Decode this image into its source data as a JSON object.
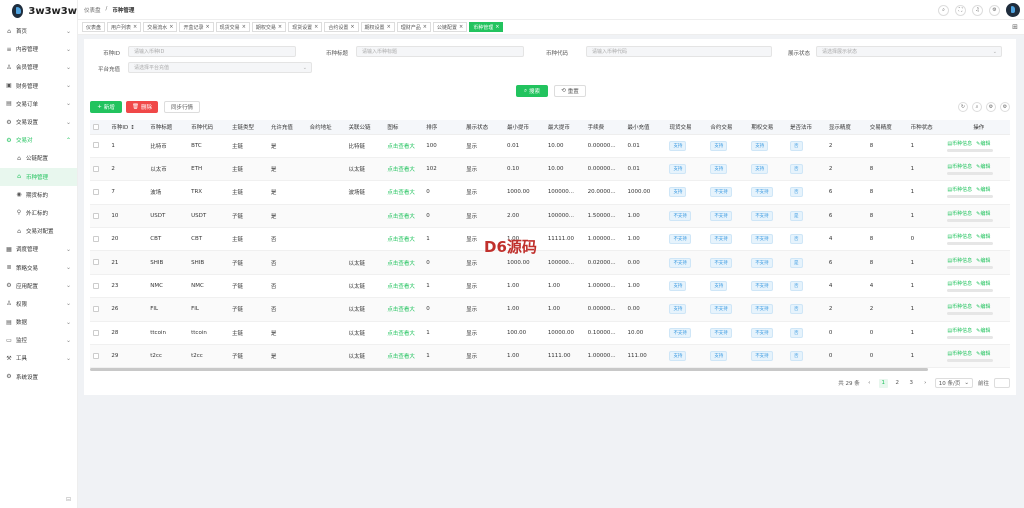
{
  "app": {
    "title": "3w3w3w"
  },
  "sidebar": {
    "items": [
      {
        "label": "首页",
        "icon": "home-icon",
        "glyph": "⌂",
        "arrow": "⌄"
      },
      {
        "label": "内容管理",
        "icon": "list-icon",
        "glyph": "≡",
        "arrow": "⌄"
      },
      {
        "label": "会员管理",
        "icon": "user-icon",
        "glyph": "♙",
        "arrow": "⌄"
      },
      {
        "label": "财务管理",
        "icon": "wallet-icon",
        "glyph": "▣",
        "arrow": "⌄"
      },
      {
        "label": "交易订单",
        "icon": "order-icon",
        "glyph": "▤",
        "arrow": "⌄"
      },
      {
        "label": "交易设置",
        "icon": "wrench-icon",
        "glyph": "⚙",
        "arrow": "⌄"
      },
      {
        "label": "交易对",
        "icon": "gear-icon",
        "glyph": "⚙",
        "arrow": "⌃"
      },
      {
        "label": "公链配置",
        "icon": "home-icon",
        "glyph": "⌂",
        "arrow": ""
      },
      {
        "label": "币种管理",
        "icon": "home-icon",
        "glyph": "⌂",
        "arrow": ""
      },
      {
        "label": "期货标的",
        "icon": "target-icon",
        "glyph": "◉",
        "arrow": ""
      },
      {
        "label": "外汇标的",
        "icon": "pin-icon",
        "glyph": "⚲",
        "arrow": ""
      },
      {
        "label": "交易对配置",
        "icon": "home-icon",
        "glyph": "⌂",
        "arrow": ""
      },
      {
        "label": "调度管理",
        "icon": "calendar-icon",
        "glyph": "▦",
        "arrow": "⌄"
      },
      {
        "label": "策略交易",
        "icon": "chart-icon",
        "glyph": "≣",
        "arrow": "⌄"
      },
      {
        "label": "应用配置",
        "icon": "settings-icon",
        "glyph": "⚙",
        "arrow": "⌄"
      },
      {
        "label": "权限",
        "icon": "lock-icon",
        "glyph": "♙",
        "arrow": "⌄"
      },
      {
        "label": "数据",
        "icon": "database-icon",
        "glyph": "▤",
        "arrow": "⌄"
      },
      {
        "label": "监控",
        "icon": "monitor-icon",
        "glyph": "▭",
        "arrow": "⌄"
      },
      {
        "label": "工具",
        "icon": "tool-icon",
        "glyph": "⚒",
        "arrow": "⌄"
      },
      {
        "label": "系统设置",
        "icon": "gear-icon",
        "glyph": "⚙",
        "arrow": ""
      }
    ],
    "collapse_glyph": "⊟"
  },
  "header": {
    "breadcrumb": [
      "仪表盘",
      "币种管理"
    ],
    "separator": "/",
    "tools": [
      "⌕",
      "⛶",
      "♫",
      "⚙"
    ]
  },
  "tabs": {
    "items": [
      "仪表盘",
      "用户列表",
      "交易流水",
      "开盒记录",
      "现货交易",
      "期权交易",
      "现货设置",
      "合约设置",
      "期权设置",
      "理财产品",
      "公链配置",
      "币种管理"
    ],
    "close": "×",
    "more": "⊞"
  },
  "filters": {
    "coin_id": {
      "label": "币种ID",
      "placeholder": "请输入币种ID"
    },
    "coin_title": {
      "label": "币种标题",
      "placeholder": "请输入币种标题"
    },
    "coin_code": {
      "label": "币种代码",
      "placeholder": "请输入币种代码"
    },
    "display_status": {
      "label": "展示状态",
      "placeholder": "请选择展示状态"
    },
    "platform_deposit": {
      "label": "平台充值",
      "placeholder": "请选择平台充值"
    }
  },
  "buttons": {
    "search": "搜索",
    "reset": "重置",
    "add": "新增",
    "delete": "删除",
    "sync": "同步行情",
    "search_icon": "⌕",
    "reset_icon": "⟲",
    "add_icon": "+",
    "delete_icon": "🗑"
  },
  "table_tools": [
    "↻",
    "⌕",
    "⚙",
    "⚙"
  ],
  "table": {
    "headers": [
      "币种ID",
      "币种标题",
      "币种代码",
      "主链类型",
      "允许充值",
      "合约地址",
      "关联公链",
      "图标",
      "排序",
      "展示状态",
      "最小提币",
      "最大提币",
      "手续费",
      "最小充值",
      "现货交易",
      "合约交易",
      "期权交易",
      "是否法币",
      "显示精度",
      "交易精度",
      "币种状态",
      "操作"
    ],
    "sort_glyph": "↕",
    "rows": [
      [
        "1",
        "比特币",
        "BTC",
        "主链",
        "是",
        "",
        "比特链",
        "点击查看大",
        "100",
        "显示",
        "0.01",
        "10.00",
        "0.00000...",
        "0.01",
        "支持",
        "支持",
        "支持",
        "否",
        "2",
        "8",
        "1"
      ],
      [
        "2",
        "以太币",
        "ETH",
        "主链",
        "是",
        "",
        "以太链",
        "点击查看大",
        "102",
        "显示",
        "0.10",
        "10.00",
        "0.00000...",
        "0.01",
        "支持",
        "支持",
        "支持",
        "否",
        "2",
        "8",
        "1"
      ],
      [
        "7",
        "波场",
        "TRX",
        "主链",
        "是",
        "",
        "波场链",
        "点击查看大",
        "0",
        "显示",
        "1000.00",
        "100000...",
        "20.0000...",
        "1000.00",
        "支持",
        "不支持",
        "不支持",
        "否",
        "6",
        "8",
        "1"
      ],
      [
        "10",
        "USDT",
        "USDT",
        "子链",
        "是",
        "",
        "",
        "点击查看大",
        "0",
        "显示",
        "2.00",
        "100000...",
        "1.50000...",
        "1.00",
        "不支持",
        "不支持",
        "不支持",
        "是",
        "6",
        "8",
        "1"
      ],
      [
        "20",
        "CBT",
        "CBT",
        "主链",
        "否",
        "",
        "",
        "点击查看大",
        "1",
        "显示",
        "1.00",
        "11111.00",
        "1.00000...",
        "1.00",
        "不支持",
        "不支持",
        "不支持",
        "否",
        "4",
        "8",
        "0"
      ],
      [
        "21",
        "SHIB",
        "SHIB",
        "子链",
        "否",
        "",
        "以太链",
        "点击查看大",
        "0",
        "显示",
        "1000.00",
        "100000...",
        "0.02000...",
        "0.00",
        "不支持",
        "不支持",
        "不支持",
        "是",
        "6",
        "8",
        "1"
      ],
      [
        "23",
        "NMC",
        "NMC",
        "子链",
        "否",
        "",
        "以太链",
        "点击查看大",
        "1",
        "显示",
        "1.00",
        "1.00",
        "1.00000...",
        "1.00",
        "支持",
        "支持",
        "不支持",
        "否",
        "4",
        "4",
        "1"
      ],
      [
        "26",
        "FIL",
        "FIL",
        "子链",
        "否",
        "",
        "以太链",
        "点击查看大",
        "0",
        "显示",
        "1.00",
        "1.00",
        "0.00000...",
        "0.00",
        "支持",
        "不支持",
        "不支持",
        "否",
        "2",
        "2",
        "1"
      ],
      [
        "28",
        "ttcoin",
        "ttcoin",
        "主链",
        "是",
        "",
        "以太链",
        "点击查看大",
        "1",
        "显示",
        "100.00",
        "10000.00",
        "0.10000...",
        "10.00",
        "不支持",
        "不支持",
        "不支持",
        "否",
        "0",
        "0",
        "1"
      ],
      [
        "29",
        "t2cc",
        "t2cc",
        "子链",
        "是",
        "",
        "以太链",
        "点击查看大",
        "1",
        "显示",
        "1.00",
        "1111.00",
        "1.00000...",
        "111.00",
        "支持",
        "支持",
        "不支持",
        "否",
        "0",
        "0",
        "1"
      ]
    ],
    "ops": {
      "info": "币种信息",
      "edit": "编辑"
    }
  },
  "pagination": {
    "total": "共 29 条",
    "prev": "‹",
    "pages": [
      "1",
      "2",
      "3"
    ],
    "current": "1",
    "next": "›",
    "page_size": "10 条/页",
    "jump_label": "前往"
  },
  "watermark": "D6源码",
  "colors": {
    "accent": "#22c35e",
    "danger": "#f04848",
    "badge_blue": "#3b9ae1"
  }
}
